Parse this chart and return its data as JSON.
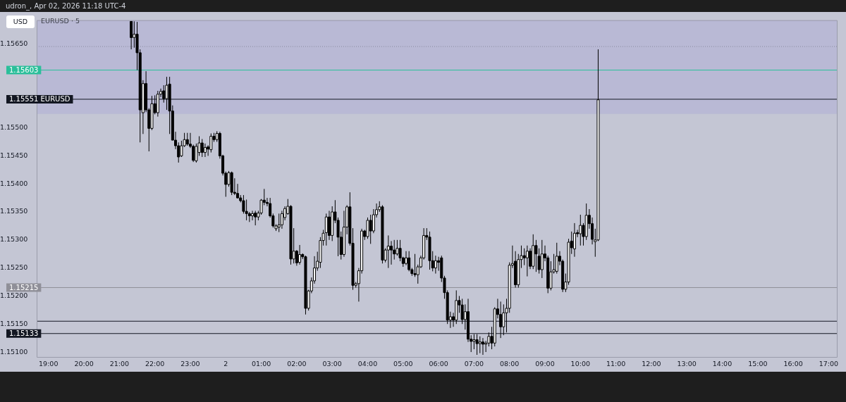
{
  "chart_data": {
    "type": "candlestick",
    "title": "EURUSD · 5",
    "subtitle": "udron_, Apr 02, 2026 11:18 UTC-4",
    "ylabel": "USD",
    "xlim": [
      "2026-04-01T18:40",
      "2026-04-02T17:15"
    ],
    "xticks": [
      {
        "value": "2026-04-01T19:00",
        "label": "19:00"
      },
      {
        "value": "2026-04-01T20:00",
        "label": "20:00"
      },
      {
        "value": "2026-04-01T21:00",
        "label": "21:00"
      },
      {
        "value": "2026-04-01T22:00",
        "label": "22:00"
      },
      {
        "value": "2026-04-01T23:00",
        "label": "23:00"
      },
      {
        "value": "2026-04-02T00:00",
        "label": "2"
      },
      {
        "value": "2026-04-02T01:00",
        "label": "01:00"
      },
      {
        "value": "2026-04-02T02:00",
        "label": "02:00"
      },
      {
        "value": "2026-04-02T03:00",
        "label": "03:00"
      },
      {
        "value": "2026-04-02T04:00",
        "label": "04:00"
      },
      {
        "value": "2026-04-02T05:00",
        "label": "05:00"
      },
      {
        "value": "2026-04-02T06:00",
        "label": "06:00"
      },
      {
        "value": "2026-04-02T07:00",
        "label": "07:00"
      },
      {
        "value": "2026-04-02T08:00",
        "label": "08:00"
      },
      {
        "value": "2026-04-02T09:00",
        "label": "09:00"
      },
      {
        "value": "2026-04-02T10:00",
        "label": "10:00"
      },
      {
        "value": "2026-04-02T11:00",
        "label": "11:00"
      },
      {
        "value": "2026-04-02T12:00",
        "label": "12:00"
      },
      {
        "value": "2026-04-02T13:00",
        "label": "13:00"
      },
      {
        "value": "2026-04-02T14:00",
        "label": "14:00"
      },
      {
        "value": "2026-04-02T15:00",
        "label": "15:00"
      },
      {
        "value": "2026-04-02T16:00",
        "label": "16:00"
      },
      {
        "value": "2026-04-02T17:00",
        "label": "17:00"
      }
    ],
    "ylim": [
      1.1509,
      1.15692
    ],
    "yticks": [
      {
        "value": 1.151,
        "label": "1.15100"
      },
      {
        "value": 1.1515,
        "label": "1.15150"
      },
      {
        "value": 1.152,
        "label": "1.15200"
      },
      {
        "value": 1.1525,
        "label": "1.15250"
      },
      {
        "value": 1.153,
        "label": "1.15300"
      },
      {
        "value": 1.1535,
        "label": "1.15350"
      },
      {
        "value": 1.154,
        "label": "1.15400"
      },
      {
        "value": 1.1545,
        "label": "1.15450"
      },
      {
        "value": 1.155,
        "label": "1.15500"
      },
      {
        "value": 1.1565,
        "label": "1.15650"
      }
    ],
    "bands": [
      {
        "axis": "y",
        "from": 1.15525,
        "to": 1.15692,
        "color": "#b9b9d5"
      }
    ],
    "ref_lines": [
      {
        "axis": "y",
        "value": 1.15645,
        "line_style": "dotted",
        "color": "#8a8ca0"
      },
      {
        "axis": "y",
        "value": 1.15603,
        "label": "1.15603",
        "color": "#2bbf9a"
      },
      {
        "axis": "y",
        "value": 1.15551,
        "label": "1.15551 EURUSD",
        "color": "#131722"
      },
      {
        "axis": "y",
        "value": 1.15215,
        "label": "1.15215",
        "color": "#8f8f98"
      },
      {
        "axis": "y",
        "value": 1.15155,
        "color": "#131722"
      },
      {
        "axis": "y",
        "value": 1.15133,
        "label": "1.15133",
        "color": "#131722"
      }
    ],
    "x": [
      "2026-04-01T21:20",
      "2026-04-01T21:25",
      "2026-04-01T21:30",
      "2026-04-01T21:35",
      "2026-04-01T21:40",
      "2026-04-01T21:45",
      "2026-04-01T21:50",
      "2026-04-01T21:55",
      "2026-04-01T22:00",
      "2026-04-01T22:05",
      "2026-04-01T22:10",
      "2026-04-01T22:15",
      "2026-04-01T22:20",
      "2026-04-01T22:25",
      "2026-04-01T22:30",
      "2026-04-01T22:35",
      "2026-04-01T22:40",
      "2026-04-01T22:45",
      "2026-04-01T22:50",
      "2026-04-01T22:55",
      "2026-04-01T23:00",
      "2026-04-01T23:05",
      "2026-04-01T23:10",
      "2026-04-01T23:15",
      "2026-04-01T23:20",
      "2026-04-01T23:25",
      "2026-04-01T23:30",
      "2026-04-01T23:35",
      "2026-04-01T23:40",
      "2026-04-01T23:45",
      "2026-04-01T23:50",
      "2026-04-01T23:55",
      "2026-04-02T00:00",
      "2026-04-02T00:05",
      "2026-04-02T00:10",
      "2026-04-02T00:15",
      "2026-04-02T00:20",
      "2026-04-02T00:25",
      "2026-04-02T00:30",
      "2026-04-02T00:35",
      "2026-04-02T00:40",
      "2026-04-02T00:45",
      "2026-04-02T00:50",
      "2026-04-02T00:55",
      "2026-04-02T01:00",
      "2026-04-02T01:05",
      "2026-04-02T01:10",
      "2026-04-02T01:15",
      "2026-04-02T01:20",
      "2026-04-02T01:25",
      "2026-04-02T01:30",
      "2026-04-02T01:35",
      "2026-04-02T01:40",
      "2026-04-02T01:45",
      "2026-04-02T01:50",
      "2026-04-02T01:55",
      "2026-04-02T02:00",
      "2026-04-02T02:05",
      "2026-04-02T02:10",
      "2026-04-02T02:15",
      "2026-04-02T02:20",
      "2026-04-02T02:25",
      "2026-04-02T02:30",
      "2026-04-02T02:35",
      "2026-04-02T02:40",
      "2026-04-02T02:45",
      "2026-04-02T02:50",
      "2026-04-02T02:55",
      "2026-04-02T03:00",
      "2026-04-02T03:05",
      "2026-04-02T03:10",
      "2026-04-02T03:15",
      "2026-04-02T03:20",
      "2026-04-02T03:25",
      "2026-04-02T03:30",
      "2026-04-02T03:35",
      "2026-04-02T03:40",
      "2026-04-02T03:45",
      "2026-04-02T03:50",
      "2026-04-02T03:55",
      "2026-04-02T04:00",
      "2026-04-02T04:05",
      "2026-04-02T04:10",
      "2026-04-02T04:15",
      "2026-04-02T04:20",
      "2026-04-02T04:25",
      "2026-04-02T04:30",
      "2026-04-02T04:35",
      "2026-04-02T04:40",
      "2026-04-02T04:45",
      "2026-04-02T04:50",
      "2026-04-02T04:55",
      "2026-04-02T05:00",
      "2026-04-02T05:05",
      "2026-04-02T05:10",
      "2026-04-02T05:15",
      "2026-04-02T05:20",
      "2026-04-02T05:25",
      "2026-04-02T05:30",
      "2026-04-02T05:35",
      "2026-04-02T05:40",
      "2026-04-02T05:45",
      "2026-04-02T05:50",
      "2026-04-02T05:55",
      "2026-04-02T06:00",
      "2026-04-02T06:05",
      "2026-04-02T06:10",
      "2026-04-02T06:15",
      "2026-04-02T06:20",
      "2026-04-02T06:25",
      "2026-04-02T06:30",
      "2026-04-02T06:35",
      "2026-04-02T06:40",
      "2026-04-02T06:45",
      "2026-04-02T06:50",
      "2026-04-02T06:55",
      "2026-04-02T07:00",
      "2026-04-02T07:05",
      "2026-04-02T07:10",
      "2026-04-02T07:15",
      "2026-04-02T07:20",
      "2026-04-02T07:25",
      "2026-04-02T07:30",
      "2026-04-02T07:35",
      "2026-04-02T07:40",
      "2026-04-02T07:45",
      "2026-04-02T07:50",
      "2026-04-02T07:55",
      "2026-04-02T08:00",
      "2026-04-02T08:05",
      "2026-04-02T08:10",
      "2026-04-02T08:15",
      "2026-04-02T08:20",
      "2026-04-02T08:25",
      "2026-04-02T08:30",
      "2026-04-02T08:35",
      "2026-04-02T08:40",
      "2026-04-02T08:45",
      "2026-04-02T08:50",
      "2026-04-02T08:55",
      "2026-04-02T09:00",
      "2026-04-02T09:05",
      "2026-04-02T09:10",
      "2026-04-02T09:15",
      "2026-04-02T09:20",
      "2026-04-02T09:25",
      "2026-04-02T09:30",
      "2026-04-02T09:35",
      "2026-04-02T09:40",
      "2026-04-02T09:45",
      "2026-04-02T09:50",
      "2026-04-02T09:55",
      "2026-04-02T10:00",
      "2026-04-02T10:05",
      "2026-04-02T10:10",
      "2026-04-02T10:15",
      "2026-04-02T10:20",
      "2026-04-02T10:25",
      "2026-04-02T10:30"
    ],
    "ohlc": [
      [
        1.1569,
        1.1569,
        1.1564,
        1.15661
      ],
      [
        1.15661,
        1.1569,
        1.15643,
        1.15667
      ],
      [
        1.15667,
        1.15689,
        1.15603,
        1.15634
      ],
      [
        1.15634,
        1.1564,
        1.15474,
        1.15532
      ],
      [
        1.15527,
        1.15585,
        1.15489,
        1.15579
      ],
      [
        1.15579,
        1.15601,
        1.15528,
        1.15532
      ],
      [
        1.15532,
        1.15535,
        1.15458,
        1.15499
      ],
      [
        1.15499,
        1.15557,
        1.15496,
        1.15543
      ],
      [
        1.15543,
        1.15558,
        1.15524,
        1.15527
      ],
      [
        1.15527,
        1.15566,
        1.1552,
        1.1556
      ],
      [
        1.1556,
        1.1557,
        1.15555,
        1.15565
      ],
      [
        1.15566,
        1.15576,
        1.15545,
        1.15552
      ],
      [
        1.15552,
        1.15591,
        1.15532,
        1.15576
      ],
      [
        1.15578,
        1.15591,
        1.15489,
        1.1553
      ],
      [
        1.1553,
        1.1554,
        1.15478,
        1.15478
      ],
      [
        1.15478,
        1.15493,
        1.15462,
        1.15468
      ],
      [
        1.15468,
        1.15474,
        1.15438,
        1.15448
      ],
      [
        1.1545,
        1.15477,
        1.15448,
        1.15468
      ],
      [
        1.15468,
        1.15491,
        1.15466,
        1.15479
      ],
      [
        1.15479,
        1.15491,
        1.15468,
        1.15471
      ],
      [
        1.15471,
        1.15491,
        1.15464,
        1.15467
      ],
      [
        1.15467,
        1.1547,
        1.15439,
        1.15442
      ],
      [
        1.15441,
        1.15472,
        1.15438,
        1.15467
      ],
      [
        1.15456,
        1.15485,
        1.1545,
        1.15473
      ],
      [
        1.15473,
        1.1548,
        1.15448,
        1.15456
      ],
      [
        1.15456,
        1.15472,
        1.15448,
        1.15465
      ],
      [
        1.15466,
        1.15469,
        1.1545,
        1.15462
      ],
      [
        1.15461,
        1.1549,
        1.15456,
        1.15485
      ],
      [
        1.15485,
        1.15491,
        1.15475,
        1.15479
      ],
      [
        1.15479,
        1.15494,
        1.15475,
        1.1549
      ],
      [
        1.1549,
        1.15493,
        1.15445,
        1.1545
      ],
      [
        1.1545,
        1.15452,
        1.15415,
        1.15419
      ],
      [
        1.15419,
        1.15422,
        1.15377,
        1.15399
      ],
      [
        1.15399,
        1.15423,
        1.15395,
        1.1542
      ],
      [
        1.1542,
        1.15422,
        1.1538,
        1.15385
      ],
      [
        1.15385,
        1.1541,
        1.1538,
        1.15383
      ],
      [
        1.15383,
        1.154,
        1.15374,
        1.15375
      ],
      [
        1.15375,
        1.1538,
        1.15367,
        1.1537
      ],
      [
        1.1537,
        1.1538,
        1.15347,
        1.15351
      ],
      [
        1.15351,
        1.15372,
        1.15335,
        1.15347
      ],
      [
        1.15347,
        1.1535,
        1.15332,
        1.15343
      ],
      [
        1.15343,
        1.15352,
        1.15335,
        1.15347
      ],
      [
        1.15348,
        1.15352,
        1.15326,
        1.15341
      ],
      [
        1.15341,
        1.15352,
        1.15335,
        1.15348
      ],
      [
        1.15348,
        1.15373,
        1.15345,
        1.15371
      ],
      [
        1.15371,
        1.15391,
        1.15362,
        1.15367
      ],
      [
        1.15367,
        1.15375,
        1.1536,
        1.15365
      ],
      [
        1.15365,
        1.15375,
        1.1534,
        1.15343
      ],
      [
        1.15343,
        1.15347,
        1.15322,
        1.15325
      ],
      [
        1.1532,
        1.15328,
        1.15316,
        1.15325
      ],
      [
        1.15323,
        1.15347,
        1.15314,
        1.15327
      ],
      [
        1.15327,
        1.15352,
        1.1532,
        1.15347
      ],
      [
        1.1534,
        1.1536,
        1.15335,
        1.15356
      ],
      [
        1.15347,
        1.15373,
        1.15345,
        1.1536
      ],
      [
        1.1536,
        1.15362,
        1.15256,
        1.15266
      ],
      [
        1.15266,
        1.15321,
        1.15258,
        1.1528
      ],
      [
        1.1528,
        1.15282,
        1.15254,
        1.15259
      ],
      [
        1.1526,
        1.15291,
        1.15256,
        1.15274
      ],
      [
        1.15274,
        1.15276,
        1.15266,
        1.1527
      ],
      [
        1.1527,
        1.15272,
        1.15167,
        1.15178
      ],
      [
        1.15178,
        1.15211,
        1.15174,
        1.15209
      ],
      [
        1.15209,
        1.15233,
        1.15205,
        1.15227
      ],
      [
        1.15227,
        1.15271,
        1.15222,
        1.1525
      ],
      [
        1.1525,
        1.15279,
        1.15245,
        1.15262
      ],
      [
        1.1526,
        1.15305,
        1.1525,
        1.15299
      ],
      [
        1.15299,
        1.15318,
        1.1529,
        1.15312
      ],
      [
        1.15313,
        1.15347,
        1.1529,
        1.15341
      ],
      [
        1.15341,
        1.15352,
        1.153,
        1.15308
      ],
      [
        1.15308,
        1.1536,
        1.15298,
        1.1535
      ],
      [
        1.1535,
        1.15371,
        1.1533,
        1.15335
      ],
      [
        1.15335,
        1.1534,
        1.15271,
        1.15305
      ],
      [
        1.15305,
        1.15315,
        1.15265,
        1.15274
      ],
      [
        1.15274,
        1.15352,
        1.1527,
        1.15323
      ],
      [
        1.15323,
        1.15362,
        1.1531,
        1.15359
      ],
      [
        1.15359,
        1.15385,
        1.1529,
        1.15294
      ],
      [
        1.15294,
        1.15321,
        1.15211,
        1.15219
      ],
      [
        1.15219,
        1.15225,
        1.15215,
        1.15222
      ],
      [
        1.15222,
        1.1525,
        1.1519,
        1.15245
      ],
      [
        1.15245,
        1.1532,
        1.1524,
        1.15316
      ],
      [
        1.15316,
        1.15318,
        1.153,
        1.15306
      ],
      [
        1.15306,
        1.1534,
        1.15302,
        1.15335
      ],
      [
        1.15335,
        1.15345,
        1.15293,
        1.15316
      ],
      [
        1.15316,
        1.15355,
        1.15312,
        1.15345
      ],
      [
        1.15345,
        1.15365,
        1.1534,
        1.15354
      ],
      [
        1.15354,
        1.15369,
        1.1535,
        1.15359
      ],
      [
        1.15359,
        1.15362,
        1.15258,
        1.15264
      ],
      [
        1.15264,
        1.15285,
        1.1526,
        1.15282
      ],
      [
        1.15282,
        1.15308,
        1.1525,
        1.15289
      ],
      [
        1.15289,
        1.15298,
        1.15256,
        1.15282
      ],
      [
        1.15282,
        1.153,
        1.15265,
        1.15275
      ],
      [
        1.15275,
        1.153,
        1.15272,
        1.15285
      ],
      [
        1.15285,
        1.153,
        1.15262,
        1.15268
      ],
      [
        1.15268,
        1.1527,
        1.15252,
        1.15258
      ],
      [
        1.15258,
        1.1528,
        1.15255,
        1.15268
      ],
      [
        1.15268,
        1.1528,
        1.15244,
        1.15247
      ],
      [
        1.15247,
        1.1525,
        1.15236,
        1.1524
      ],
      [
        1.1524,
        1.15275,
        1.15234,
        1.15238
      ],
      [
        1.15238,
        1.15256,
        1.15222,
        1.15252
      ],
      [
        1.15252,
        1.15272,
        1.1525,
        1.15268
      ],
      [
        1.15268,
        1.15321,
        1.15265,
        1.15308
      ],
      [
        1.15308,
        1.15321,
        1.153,
        1.15305
      ],
      [
        1.15305,
        1.15315,
        1.15247,
        1.15263
      ],
      [
        1.15263,
        1.1528,
        1.15244,
        1.1525
      ],
      [
        1.1525,
        1.15272,
        1.1524,
        1.15263
      ],
      [
        1.15263,
        1.1527,
        1.15245,
        1.1526
      ],
      [
        1.15268,
        1.15272,
        1.15225,
        1.15232
      ],
      [
        1.15232,
        1.15236,
        1.15195,
        1.15206
      ],
      [
        1.15206,
        1.1521,
        1.1515,
        1.15157
      ],
      [
        1.15157,
        1.15172,
        1.15143,
        1.15163
      ],
      [
        1.15163,
        1.1517,
        1.15145,
        1.15157
      ],
      [
        1.15157,
        1.1521,
        1.1515,
        1.15192
      ],
      [
        1.15192,
        1.152,
        1.1517,
        1.15184
      ],
      [
        1.15184,
        1.15195,
        1.1515,
        1.15158
      ],
      [
        1.15158,
        1.15185,
        1.1514,
        1.15172
      ],
      [
        1.15172,
        1.15195,
        1.15118,
        1.15123
      ],
      [
        1.15123,
        1.1513,
        1.151,
        1.15119
      ],
      [
        1.15119,
        1.15132,
        1.15105,
        1.15122
      ],
      [
        1.15122,
        1.15132,
        1.15095,
        1.15115
      ],
      [
        1.15115,
        1.15128,
        1.15098,
        1.15118
      ],
      [
        1.15118,
        1.15125,
        1.15095,
        1.15114
      ],
      [
        1.15114,
        1.1512,
        1.151,
        1.15116
      ],
      [
        1.15116,
        1.15135,
        1.1511,
        1.15128
      ],
      [
        1.15128,
        1.15145,
        1.15105,
        1.15116
      ],
      [
        1.15116,
        1.1518,
        1.1511,
        1.15177
      ],
      [
        1.15177,
        1.15195,
        1.1516,
        1.15167
      ],
      [
        1.15167,
        1.1519,
        1.15125,
        1.15145
      ],
      [
        1.15145,
        1.15185,
        1.1513,
        1.1517
      ],
      [
        1.1517,
        1.15195,
        1.15135,
        1.15178
      ],
      [
        1.15178,
        1.1526,
        1.1517,
        1.15255
      ],
      [
        1.15255,
        1.1529,
        1.1525,
        1.15258
      ],
      [
        1.15262,
        1.1528,
        1.15215,
        1.1522
      ],
      [
        1.1522,
        1.15275,
        1.15215,
        1.15265
      ],
      [
        1.15265,
        1.1529,
        1.1525,
        1.15272
      ],
      [
        1.15272,
        1.15285,
        1.15255,
        1.15268
      ],
      [
        1.15268,
        1.1529,
        1.15235,
        1.1528
      ],
      [
        1.1528,
        1.15285,
        1.15248,
        1.15253
      ],
      [
        1.15253,
        1.1531,
        1.15248,
        1.1529
      ],
      [
        1.1529,
        1.153,
        1.15243,
        1.15275
      ],
      [
        1.15271,
        1.15285,
        1.1524,
        1.15247
      ],
      [
        1.15247,
        1.153,
        1.15232,
        1.15275
      ],
      [
        1.15275,
        1.1529,
        1.15262,
        1.15268
      ],
      [
        1.15268,
        1.15272,
        1.15205,
        1.15214
      ],
      [
        1.15214,
        1.15262,
        1.1521,
        1.15243
      ],
      [
        1.15243,
        1.15275,
        1.1524,
        1.15247
      ],
      [
        1.15244,
        1.15295,
        1.1524,
        1.15271
      ],
      [
        1.15271,
        1.1528,
        1.15255,
        1.15262
      ],
      [
        1.15262,
        1.15265,
        1.15207,
        1.15212
      ],
      [
        1.15212,
        1.1524,
        1.15207,
        1.15225
      ],
      [
        1.15225,
        1.15302,
        1.1522,
        1.15296
      ],
      [
        1.15298,
        1.15315,
        1.15275,
        1.15286
      ],
      [
        1.15284,
        1.1533,
        1.1527,
        1.15312
      ],
      [
        1.15313,
        1.15318,
        1.15305,
        1.15311
      ],
      [
        1.15311,
        1.15345,
        1.1529,
        1.15326
      ],
      [
        1.15326,
        1.1533,
        1.1529,
        1.15306
      ],
      [
        1.15306,
        1.15365,
        1.153,
        1.15344
      ],
      [
        1.15344,
        1.15355,
        1.1532,
        1.15329
      ],
      [
        1.15329,
        1.1534,
        1.15292,
        1.15301
      ],
      [
        1.15297,
        1.1532,
        1.1527,
        1.153
      ],
      [
        1.153,
        1.1564,
        1.15298,
        1.1555
      ]
    ]
  }
}
